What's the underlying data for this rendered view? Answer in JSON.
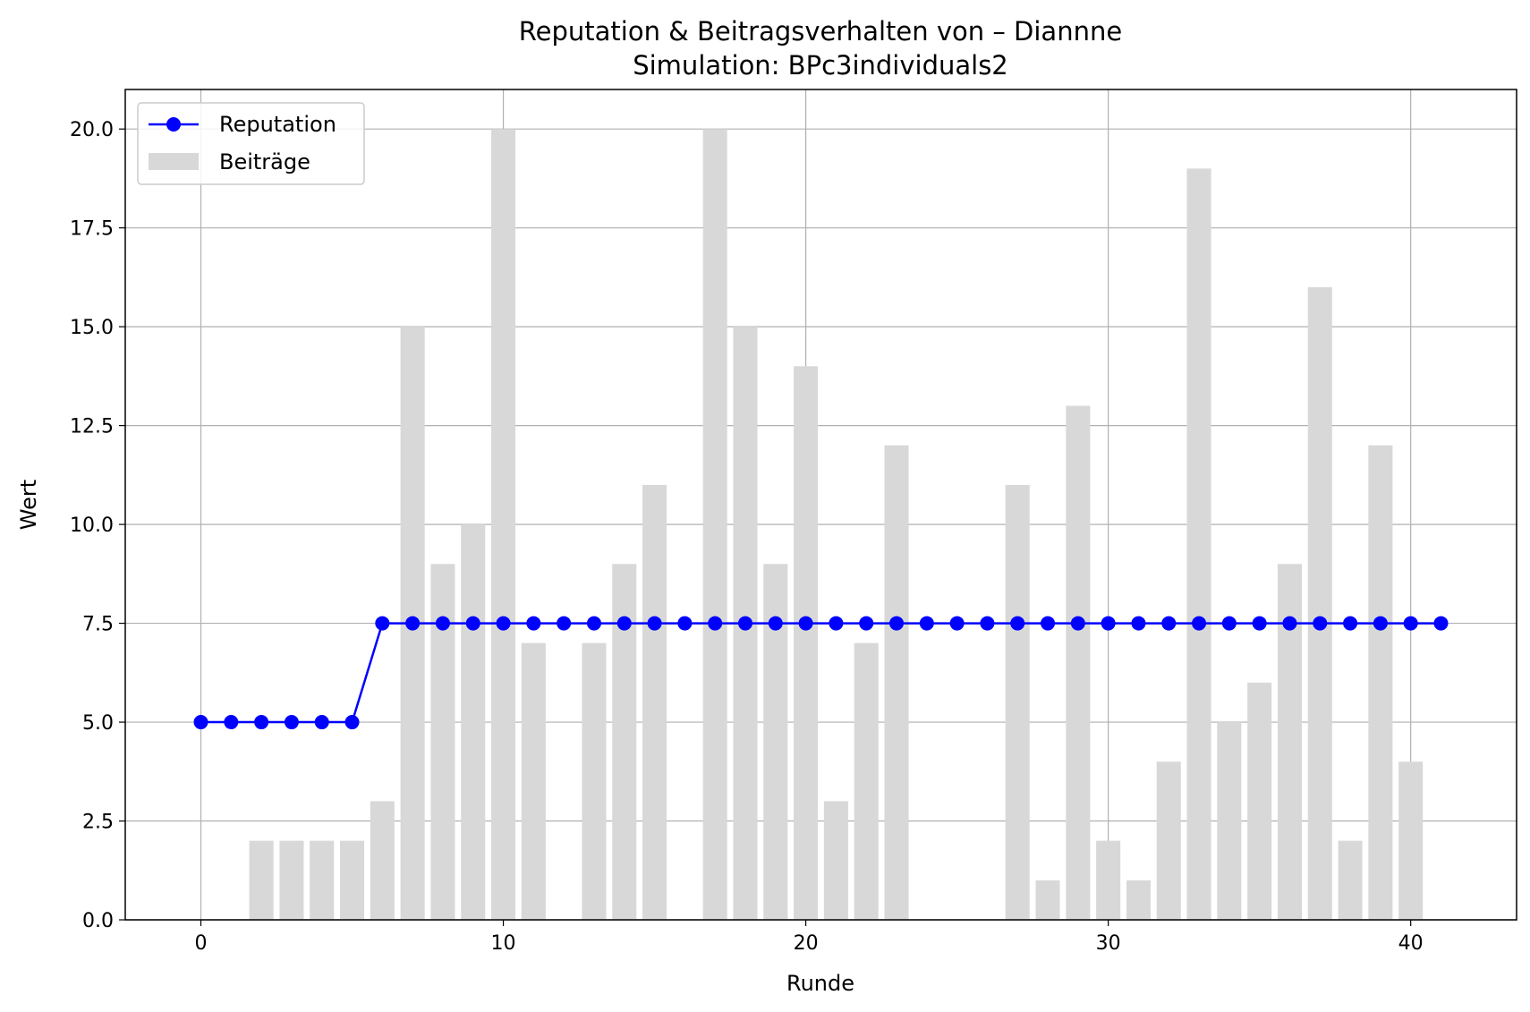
{
  "chart_data": {
    "type": "bar+line",
    "title": "Reputation & Beitragsverhalten von – Diannne",
    "subtitle": "Simulation: BPc3individuals2",
    "xlabel": "Runde",
    "ylabel": "Wert",
    "xlim": [
      -2.5,
      43.5
    ],
    "ylim": [
      0,
      21
    ],
    "x_ticks": [
      0,
      10,
      20,
      30,
      40
    ],
    "y_ticks": [
      0.0,
      2.5,
      5.0,
      7.5,
      10.0,
      12.5,
      15.0,
      17.5,
      20.0
    ],
    "grid": true,
    "legend_position": "top-left",
    "series": [
      {
        "name": "Reputation",
        "kind": "line",
        "color": "#0000ff",
        "x": [
          0,
          1,
          2,
          3,
          4,
          5,
          6,
          7,
          8,
          9,
          10,
          11,
          12,
          13,
          14,
          15,
          16,
          17,
          18,
          19,
          20,
          21,
          22,
          23,
          24,
          25,
          26,
          27,
          28,
          29,
          30,
          31,
          32,
          33,
          34,
          35,
          36,
          37,
          38,
          39,
          40,
          41
        ],
        "values": [
          5,
          5,
          5,
          5,
          5,
          5,
          7.5,
          7.5,
          7.5,
          7.5,
          7.5,
          7.5,
          7.5,
          7.5,
          7.5,
          7.5,
          7.5,
          7.5,
          7.5,
          7.5,
          7.5,
          7.5,
          7.5,
          7.5,
          7.5,
          7.5,
          7.5,
          7.5,
          7.5,
          7.5,
          7.5,
          7.5,
          7.5,
          7.5,
          7.5,
          7.5,
          7.5,
          7.5,
          7.5,
          7.5,
          7.5,
          7.5
        ]
      },
      {
        "name": "Beiträge",
        "kind": "bar",
        "color": "#d8d8d8",
        "x": [
          0,
          1,
          2,
          3,
          4,
          5,
          6,
          7,
          8,
          9,
          10,
          11,
          12,
          13,
          14,
          15,
          16,
          17,
          18,
          19,
          20,
          21,
          22,
          23,
          24,
          25,
          26,
          27,
          28,
          29,
          30,
          31,
          32,
          33,
          34,
          35,
          36,
          37,
          38,
          39,
          40
        ],
        "values": [
          0,
          0,
          2,
          2,
          2,
          2,
          3,
          15,
          9,
          10,
          20,
          7,
          0,
          7,
          9,
          11,
          0,
          20,
          15,
          9,
          14,
          3,
          7,
          12,
          0,
          0,
          0,
          11,
          1,
          13,
          2,
          1,
          4,
          19,
          5,
          6,
          9,
          16,
          2,
          12,
          4
        ]
      }
    ]
  }
}
